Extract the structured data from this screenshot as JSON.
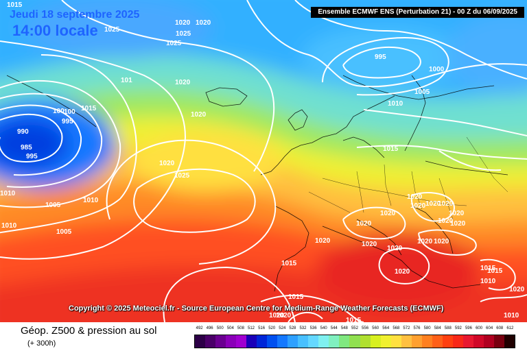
{
  "header": {
    "date": "Jeudi 18 septembre 2025",
    "time": "14:00 locale",
    "model": "Ensemble ECMWF ENS  (Perturbation 21)  -  00 Z du 06/09/2025"
  },
  "copyright": "Copyright © 2025 Meteociel.fr - Source European Centre for Medium-Range Weather Forecasts (ECMWF)",
  "footer": {
    "title": "Géop. Z500 & pression au sol",
    "subtitle": "(+ 300h)"
  },
  "pressure_labels": [
    "1015",
    "1025",
    "1020",
    "1020",
    "1025",
    "1025",
    "995",
    "1000",
    "101",
    "1020",
    "1005",
    "1010",
    "1015",
    "100",
    "1020",
    "100",
    "995",
    "990",
    "985",
    "995",
    "1015",
    "1020",
    "1025",
    "1010",
    "1005",
    "1010",
    "1010",
    "1005",
    "1015",
    "1020",
    "1020",
    "1020",
    "1020",
    "1020",
    "1020",
    "1020",
    "1020",
    "1020",
    "1020",
    "1020",
    "1020",
    "1020",
    "1020",
    "1020",
    "1015",
    "1015",
    "1010",
    "1015",
    "1020",
    "1015",
    "1010",
    "1020",
    "1020"
  ],
  "scale": {
    "labels": [
      "492",
      "496",
      "500",
      "504",
      "508",
      "512",
      "516",
      "520",
      "524",
      "528",
      "532",
      "536",
      "540",
      "544",
      "548",
      "552",
      "556",
      "560",
      "564",
      "568",
      "572",
      "576",
      "580",
      "584",
      "588",
      "592",
      "596",
      "600",
      "604",
      "608",
      "612"
    ],
    "colors": [
      "#2d0047",
      "#4a0068",
      "#6a0090",
      "#8a00b8",
      "#a000d0",
      "#1a00b8",
      "#0026d8",
      "#0050f0",
      "#1478ff",
      "#2ea0ff",
      "#48c0ff",
      "#64d8ff",
      "#7ff0f0",
      "#80f0c0",
      "#80e880",
      "#90e050",
      "#b0e030",
      "#d8f020",
      "#f0f030",
      "#ffe040",
      "#ffc040",
      "#ffa030",
      "#ff8020",
      "#ff6018",
      "#ff4010",
      "#f82818",
      "#e81830",
      "#d00828",
      "#b00020",
      "#780010",
      "#200000"
    ]
  }
}
